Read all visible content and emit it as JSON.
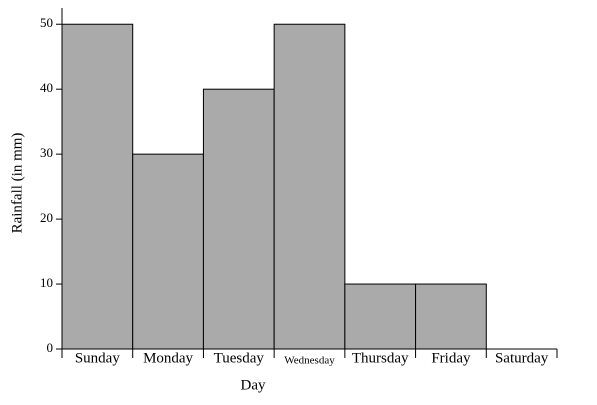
{
  "chart_data": {
    "type": "bar",
    "x_label": "Day",
    "y_label": "Rainfall (in mm)",
    "categories": [
      "Sunday",
      "Monday",
      "Tuesday",
      "Wednesday",
      "Thursday",
      "Friday",
      "Saturday"
    ],
    "values": [
      50,
      30,
      40,
      50,
      10,
      10,
      0
    ],
    "color": "#aaaaaa",
    "ylim": [
      0,
      52.5
    ],
    "yticks": [
      0,
      10,
      20,
      30,
      40,
      50
    ],
    "grid": false
  }
}
